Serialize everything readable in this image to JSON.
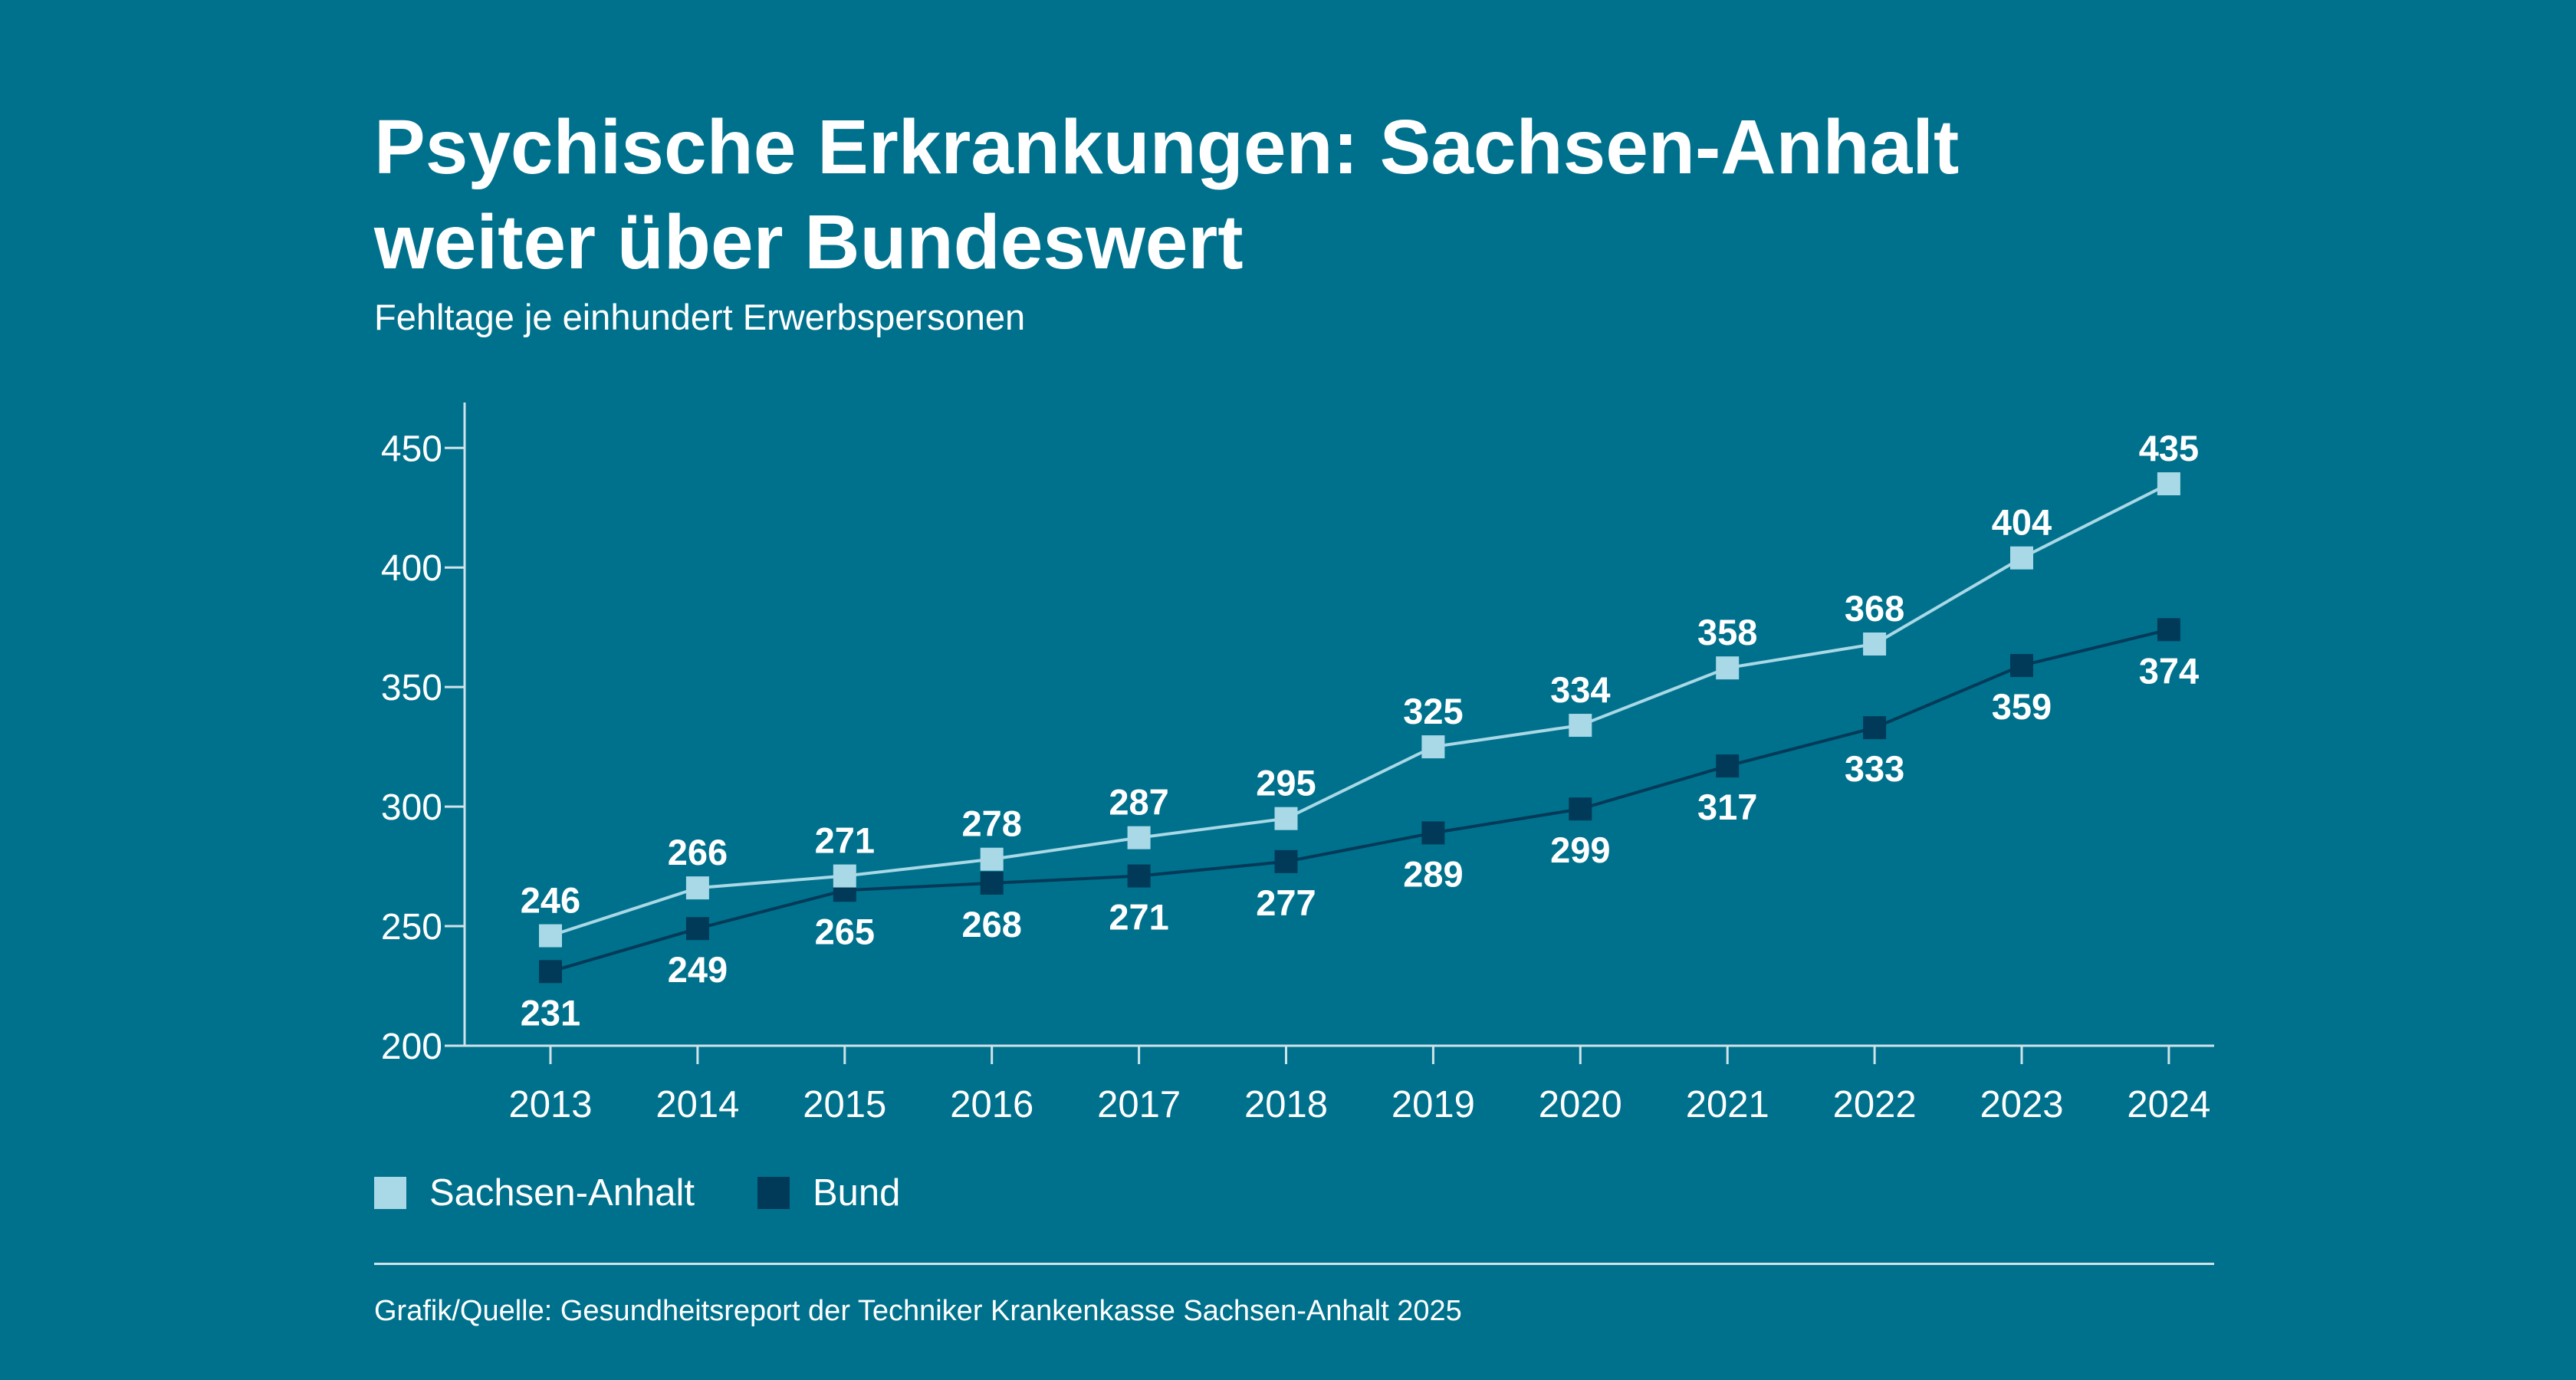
{
  "header": {
    "title_line1": "Psychische Erkrankungen: Sachsen-Anhalt",
    "title_line2": "weiter über Bundeswert",
    "subtitle": "Fehltage je einhundert Erwerbspersonen"
  },
  "colors": {
    "background": "#00718c",
    "sachsen_anhalt": "#a9d8e6",
    "bund": "#003a58",
    "axis": "#cfe3ea",
    "text": "#ffffff"
  },
  "chart_data": {
    "type": "line",
    "title": "Psychische Erkrankungen: Sachsen-Anhalt weiter über Bundeswert",
    "subtitle": "Fehltage je einhundert Erwerbspersonen",
    "xlabel": "",
    "ylabel": "",
    "categories": [
      "2013",
      "2014",
      "2015",
      "2016",
      "2017",
      "2018",
      "2019",
      "2020",
      "2021",
      "2022",
      "2023",
      "2024"
    ],
    "ylim": [
      200,
      470
    ],
    "yticks": [
      200,
      250,
      300,
      350,
      400,
      450
    ],
    "grid": false,
    "legend_position": "bottom-left",
    "series": [
      {
        "name": "Sachsen-Anhalt",
        "values": [
          246,
          266,
          271,
          278,
          287,
          295,
          325,
          334,
          358,
          368,
          404,
          435
        ],
        "label_position": "above"
      },
      {
        "name": "Bund",
        "values": [
          231,
          249,
          265,
          268,
          271,
          277,
          289,
          299,
          317,
          333,
          359,
          374
        ],
        "label_position": "below"
      }
    ]
  },
  "legend": {
    "items": [
      {
        "label": "Sachsen-Anhalt"
      },
      {
        "label": "Bund"
      }
    ]
  },
  "footer": {
    "source": "Grafik/Quelle: Gesundheitsreport der Techniker Krankenkasse Sachsen-Anhalt 2025"
  }
}
